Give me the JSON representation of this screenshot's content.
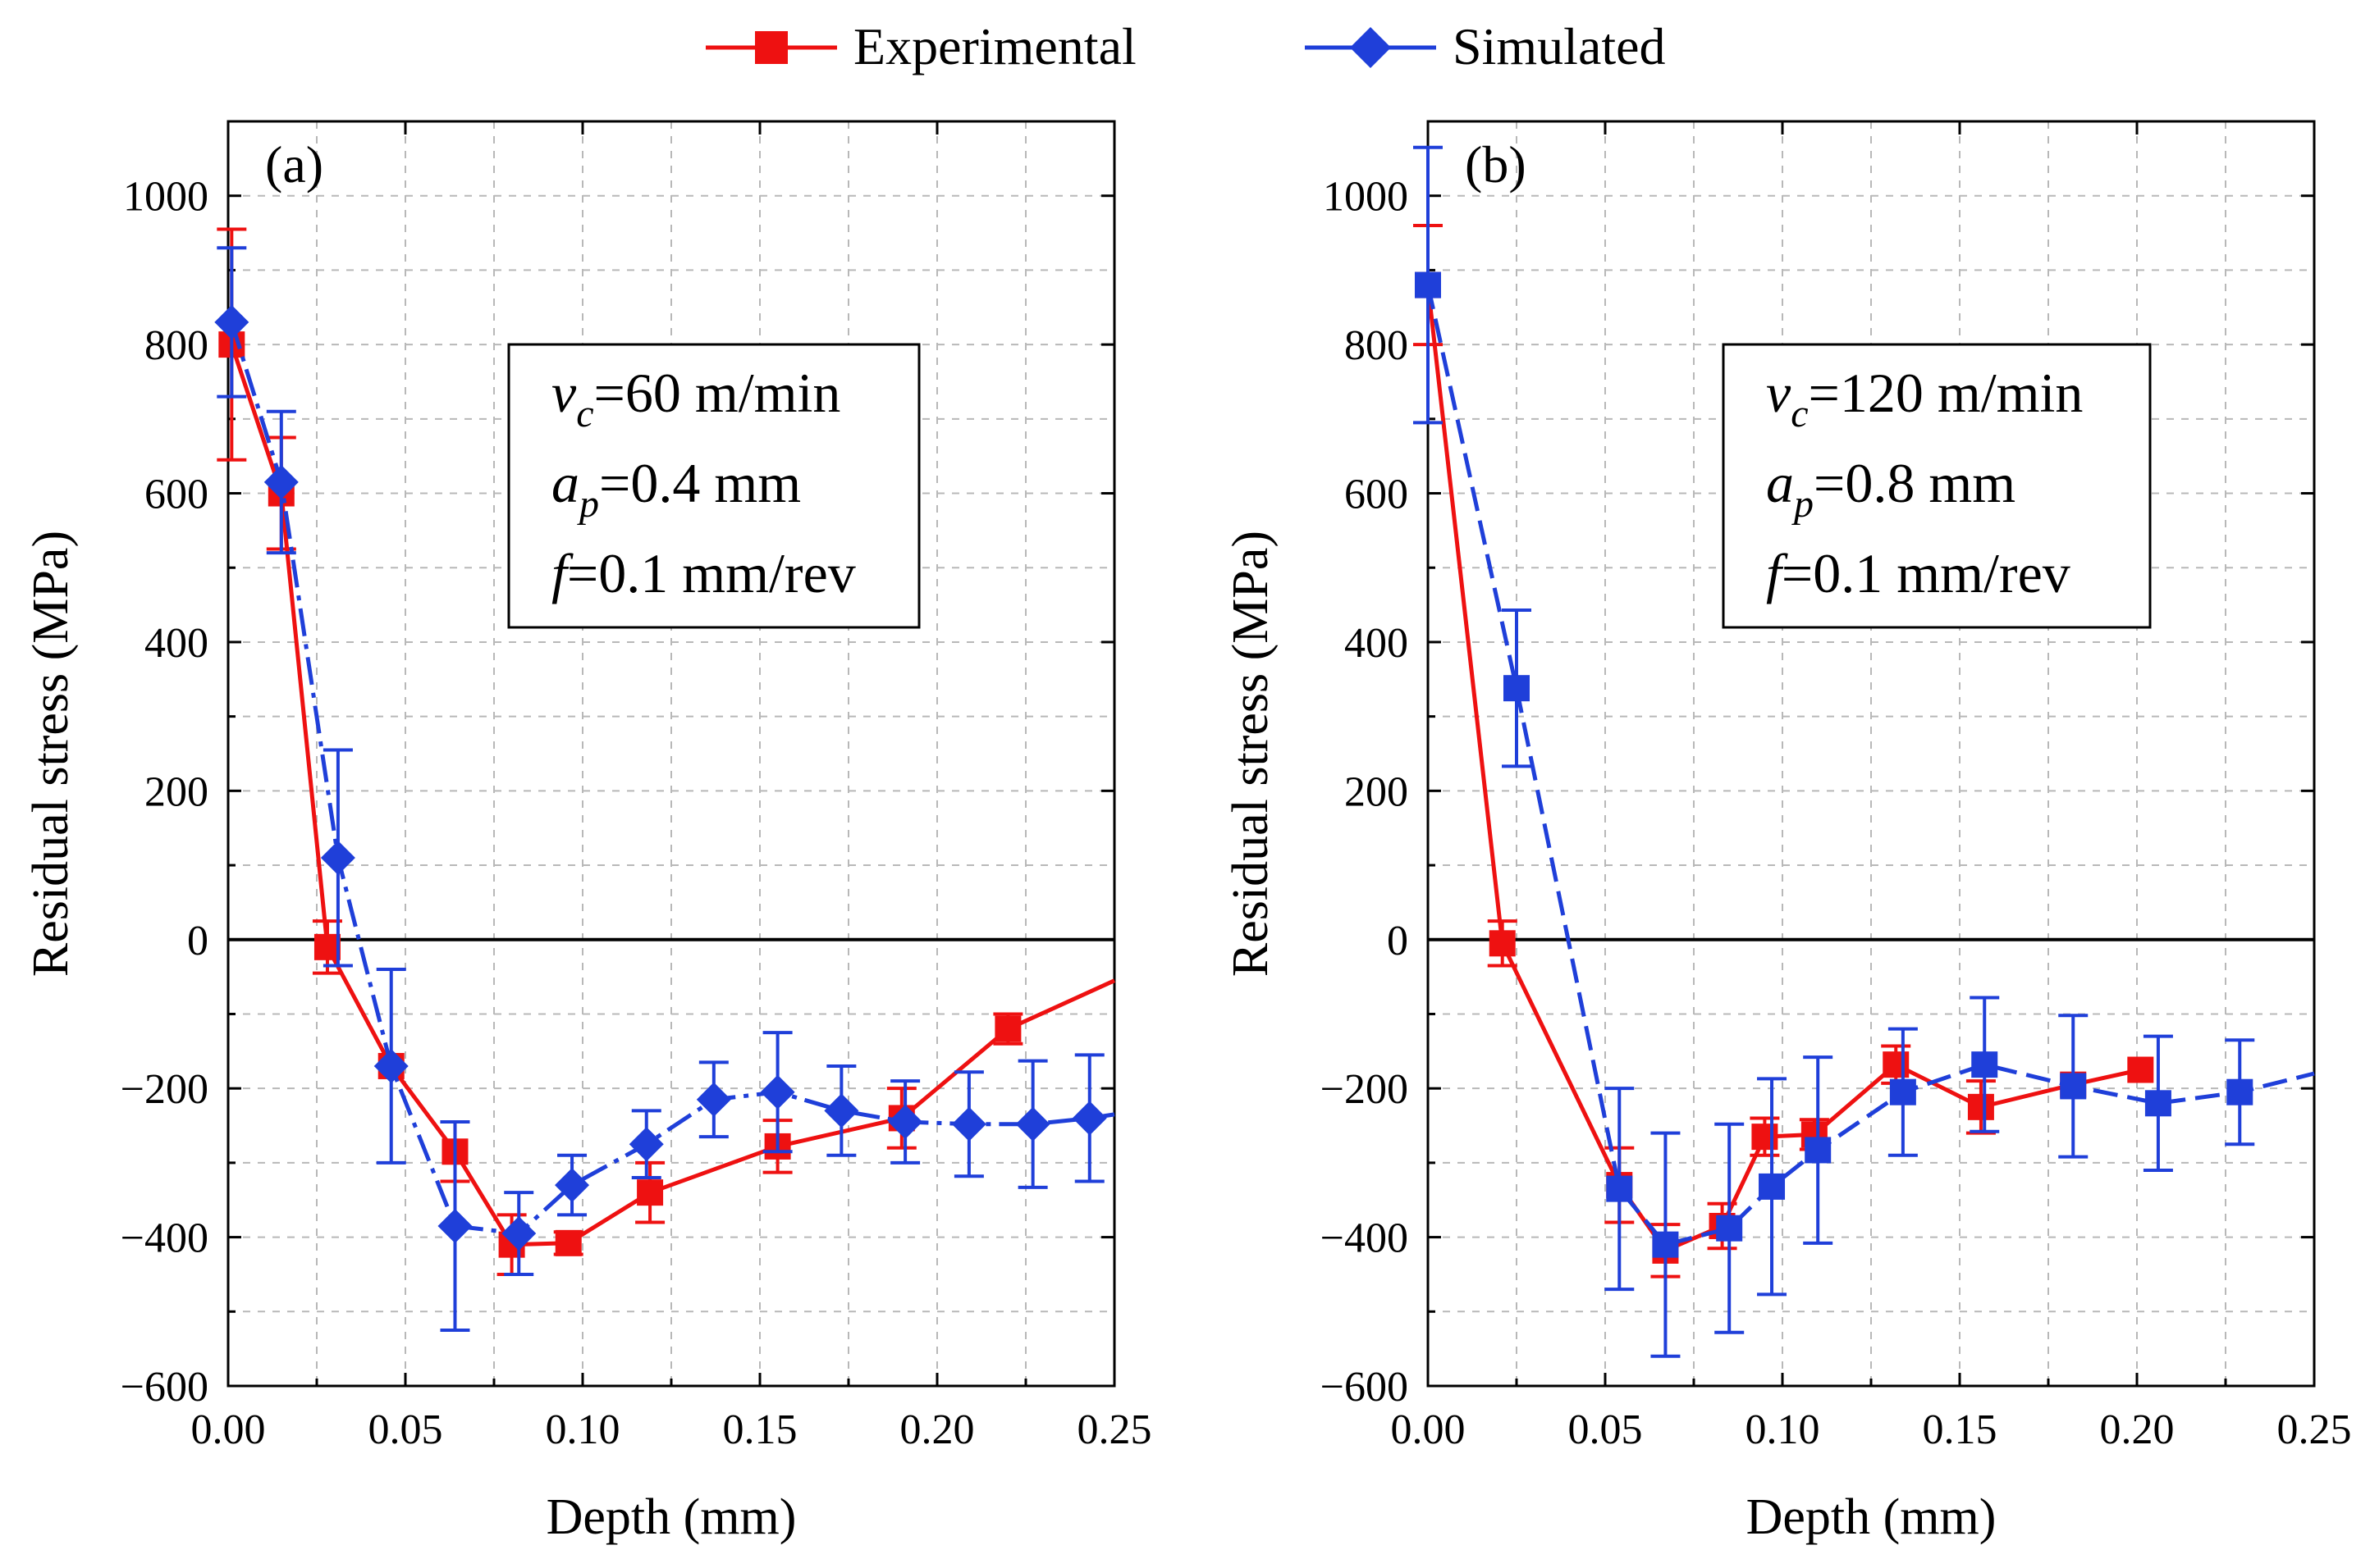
{
  "colors": {
    "experimental": "#EE1111",
    "simulated": "#1F3FD9"
  },
  "legend": [
    {
      "label": "Experimental",
      "series": "experimental",
      "marker": "square"
    },
    {
      "label": "Simulated",
      "series": "simulated",
      "marker": "diamond"
    }
  ],
  "chart_data": [
    {
      "type": "line",
      "panel_label": "(a)",
      "xlabel": "Depth (mm)",
      "ylabel": "Residual stress (MPa)",
      "xlim": [
        0,
        0.25
      ],
      "ylim": [
        -600,
        1100
      ],
      "xticks": [
        0,
        0.05,
        0.1,
        0.15,
        0.2,
        0.25
      ],
      "xtick_labels": [
        "0.00",
        "0.05",
        "0.10",
        "0.15",
        "0.20",
        "0.25"
      ],
      "yticks": [
        -600,
        -400,
        -200,
        0,
        200,
        400,
        600,
        800,
        1000
      ],
      "ytick_labels": [
        "−600",
        "−400",
        "−200",
        "0",
        "200",
        "400",
        "600",
        "800",
        "1000"
      ],
      "grid": true,
      "params": {
        "vc": "=60 m/min",
        "ap": "=0.4 mm",
        "f": "=0.1 mm/rev"
      },
      "series": [
        {
          "name": "Experimental",
          "key": "experimental",
          "marker": "square",
          "dash": "solid",
          "x": [
            0.001,
            0.015,
            0.028,
            0.046,
            0.064,
            0.08,
            0.096,
            0.119,
            0.155,
            0.19,
            0.22,
            0.25
          ],
          "y": [
            800,
            600,
            -10,
            -170,
            -285,
            -410,
            -408,
            -340,
            -278,
            -240,
            -120,
            -55
          ],
          "err": [
            155,
            75,
            35,
            0,
            40,
            40,
            15,
            40,
            35,
            40,
            20,
            null
          ]
        },
        {
          "name": "Simulated",
          "key": "simulated",
          "marker": "diamond",
          "dash": "dashdot",
          "x": [
            0.001,
            0.015,
            0.031,
            0.046,
            0.064,
            0.082,
            0.097,
            0.118,
            0.137,
            0.155,
            0.173,
            0.191,
            0.209,
            0.227,
            0.243,
            0.25
          ],
          "y": [
            830,
            615,
            110,
            -170,
            -385,
            -395,
            -330,
            -275,
            -215,
            -205,
            -230,
            -245,
            -248,
            -248,
            -240,
            -235
          ],
          "err": [
            100,
            95,
            145,
            130,
            140,
            55,
            40,
            45,
            50,
            80,
            60,
            55,
            70,
            85,
            85,
            null
          ]
        }
      ]
    },
    {
      "type": "line",
      "panel_label": "(b)",
      "xlabel": "Depth (mm)",
      "ylabel": "Residual stress (MPa)",
      "xlim": [
        0,
        0.25
      ],
      "ylim": [
        -600,
        1100
      ],
      "xticks": [
        0,
        0.05,
        0.1,
        0.15,
        0.2,
        0.25
      ],
      "xtick_labels": [
        "0.00",
        "0.05",
        "0.10",
        "0.15",
        "0.20",
        "0.25"
      ],
      "yticks": [
        -600,
        -400,
        -200,
        0,
        200,
        400,
        600,
        800,
        1000
      ],
      "ytick_labels": [
        "−600",
        "−400",
        "−200",
        "0",
        "200",
        "400",
        "600",
        "800",
        "1000"
      ],
      "grid": true,
      "params": {
        "vc": "=120 m/min",
        "ap": "=0.8 mm",
        "f": "=0.1 mm/rev"
      },
      "series": [
        {
          "name": "Experimental",
          "key": "experimental",
          "marker": "square",
          "dash": "solid",
          "x": [
            0.0,
            0.021,
            0.054,
            0.067,
            0.083,
            0.095,
            0.109,
            0.132,
            0.156,
            0.182,
            0.201
          ],
          "y": [
            880,
            -5,
            -330,
            -418,
            -385,
            -265,
            -262,
            -168,
            -225,
            -195,
            -175
          ],
          "err": [
            80,
            30,
            50,
            35,
            30,
            25,
            20,
            25,
            35,
            0,
            0
          ]
        },
        {
          "name": "Simulated",
          "key": "simulated",
          "marker": "square",
          "dash": "dashed",
          "x": [
            0.0,
            0.025,
            0.054,
            0.067,
            0.085,
            0.097,
            0.11,
            0.134,
            0.157,
            0.182,
            0.206,
            0.229,
            0.25
          ],
          "y": [
            880,
            338,
            -335,
            -410,
            -388,
            -332,
            -283,
            -205,
            -168,
            -197,
            -220,
            -205,
            -180
          ],
          "err": [
            185,
            105,
            135,
            150,
            140,
            145,
            125,
            85,
            90,
            95,
            90,
            70,
            null
          ]
        }
      ]
    }
  ]
}
